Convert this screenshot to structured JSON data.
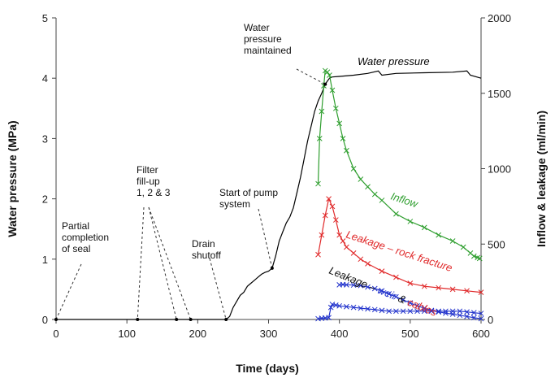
{
  "chart_data": {
    "type": "line",
    "xlabel": "Time (days)",
    "ylabel_left": "Water pressure (MPa)",
    "ylabel_right": "Inflow & leakage (ml/min)",
    "xlim": [
      0,
      600
    ],
    "ylim_left": [
      0,
      5
    ],
    "ylim_right": [
      0,
      2000
    ],
    "x_ticks": [
      "0",
      "100",
      "200",
      "300",
      "400",
      "500",
      "600"
    ],
    "y_left_ticks": [
      "0",
      "1",
      "2",
      "3",
      "4",
      "5"
    ],
    "y_right_ticks": [
      "0",
      "500",
      "1000",
      "1500",
      "2000"
    ],
    "grid": false,
    "colors": {
      "water_pressure": "#000000",
      "inflow": "#2e9e2e",
      "rock_fracture": "#e0292a",
      "weir_cables": "#2233cc",
      "leader": "#333333"
    },
    "series": [
      {
        "key": "water_pressure",
        "name": "Water pressure",
        "axis": "left",
        "marker": "none",
        "x": [
          0,
          240,
          245,
          250,
          255,
          260,
          265,
          270,
          275,
          280,
          285,
          290,
          295,
          300,
          305,
          310,
          315,
          320,
          325,
          330,
          335,
          340,
          345,
          350,
          355,
          360,
          365,
          370,
          375,
          380,
          383,
          386,
          390,
          400,
          420,
          440,
          455,
          460,
          480,
          520,
          560,
          580,
          585,
          600
        ],
        "y": [
          0,
          0,
          0.05,
          0.2,
          0.3,
          0.4,
          0.45,
          0.55,
          0.6,
          0.65,
          0.7,
          0.75,
          0.78,
          0.8,
          0.85,
          1.05,
          1.3,
          1.45,
          1.6,
          1.7,
          1.85,
          2.1,
          2.35,
          2.65,
          2.95,
          3.2,
          3.45,
          3.62,
          3.75,
          3.9,
          3.95,
          4.0,
          4.02,
          4.03,
          4.05,
          4.08,
          4.12,
          4.05,
          4.08,
          4.09,
          4.1,
          4.12,
          4.05,
          4.0
        ]
      },
      {
        "key": "inflow",
        "name": "Inflow",
        "axis": "right",
        "marker": "x",
        "x": [
          370,
          372,
          375,
          378,
          380,
          383,
          386,
          390,
          395,
          400,
          405,
          410,
          420,
          430,
          440,
          450,
          460,
          480,
          500,
          520,
          540,
          560,
          575,
          585,
          590,
          595,
          598
        ],
        "y": [
          900,
          1200,
          1380,
          1550,
          1650,
          1640,
          1620,
          1520,
          1400,
          1300,
          1200,
          1120,
          1000,
          930,
          880,
          830,
          790,
          700,
          650,
          610,
          560,
          520,
          480,
          440,
          420,
          410,
          405
        ]
      },
      {
        "key": "rock_fracture",
        "name": "Leakage – rock fracture",
        "axis": "right",
        "marker": "x",
        "x": [
          370,
          375,
          380,
          385,
          390,
          395,
          400,
          405,
          410,
          420,
          430,
          440,
          460,
          480,
          500,
          520,
          540,
          560,
          580,
          600
        ],
        "y": [
          430,
          560,
          690,
          800,
          750,
          660,
          560,
          520,
          480,
          440,
          400,
          370,
          320,
          280,
          240,
          220,
          210,
          200,
          190,
          180
        ]
      },
      {
        "key": "weir_cables_upper",
        "name": "Leakage – weir & cables",
        "axis": "right",
        "marker": "x",
        "x": [
          400,
          405,
          410,
          420,
          430,
          440,
          450,
          460,
          470,
          480,
          490,
          500,
          510,
          520,
          530,
          540,
          550,
          560,
          570,
          580,
          590,
          600
        ],
        "y": [
          230,
          232,
          230,
          228,
          225,
          215,
          205,
          190,
          170,
          150,
          130,
          110,
          90,
          75,
          60,
          50,
          42,
          35,
          28,
          20,
          12,
          5
        ]
      },
      {
        "key": "weir_cables_lower",
        "name": "",
        "axis": "right",
        "marker": "x",
        "x": [
          370,
          375,
          380,
          385,
          388,
          390,
          395,
          400,
          410,
          420,
          430,
          440,
          450,
          460,
          470,
          480,
          490,
          500,
          510,
          520,
          530,
          540,
          550,
          560,
          570,
          580,
          590,
          600
        ],
        "y": [
          5,
          8,
          10,
          12,
          80,
          100,
          95,
          90,
          85,
          80,
          75,
          70,
          65,
          60,
          55,
          55,
          55,
          55,
          55,
          55,
          55,
          55,
          55,
          55,
          55,
          50,
          45,
          40
        ]
      }
    ],
    "annotations": [
      {
        "key": "partial_seal",
        "lines": [
          "Partial",
          "completion",
          "of seal"
        ],
        "target_x": 0,
        "target_y": 0
      },
      {
        "key": "filter_fillup",
        "lines": [
          "Filter",
          "fill-up",
          "1, 2 & 3"
        ],
        "target_x": 115,
        "target_y": 0,
        "extra_targets_x": [
          170,
          190
        ]
      },
      {
        "key": "drain_shutoff",
        "lines": [
          "Drain",
          "shutoff"
        ],
        "target_x": 240,
        "target_y": 0
      },
      {
        "key": "pump_start",
        "lines": [
          "Start of pump",
          "system"
        ],
        "target_x": 305,
        "target_y": 0.85
      },
      {
        "key": "pressure_maintained",
        "lines": [
          "Water",
          "pressure",
          "maintained"
        ],
        "target_x": 380,
        "target_y": 3.9
      }
    ],
    "series_labels": {
      "water_pressure": "Water pressure",
      "inflow": "Inflow",
      "rock_fracture": "Leakage – rock fracture",
      "weir_prefix": "Leakage – ",
      "weir_word": "weir",
      "weir_amp": " & ",
      "weir_suffix": "cables"
    }
  }
}
